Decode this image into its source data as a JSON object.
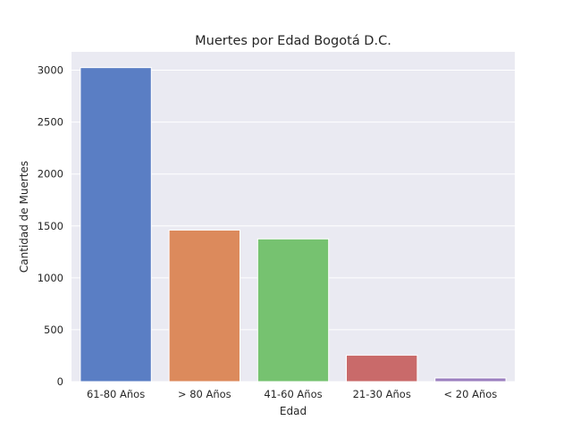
{
  "chart_data": {
    "type": "bar",
    "title": "Muertes por Edad Bogotá D.C.",
    "xlabel": "Edad",
    "ylabel": "Cantidad de Muertes",
    "categories": [
      "61-80 Años",
      "> 80 Años",
      "41-60 Años",
      "21-30 Años",
      "< 20 Años"
    ],
    "values": [
      3025,
      1460,
      1375,
      255,
      35
    ],
    "colors": [
      "#5a7ec4",
      "#dc8a5c",
      "#76c270",
      "#c96a6a",
      "#9b7fbf"
    ],
    "yticks": [
      0,
      500,
      1000,
      1500,
      2000,
      2500,
      3000
    ],
    "ylim": [
      0,
      3177
    ],
    "grid": true,
    "background_color": "#eaeaf2"
  }
}
